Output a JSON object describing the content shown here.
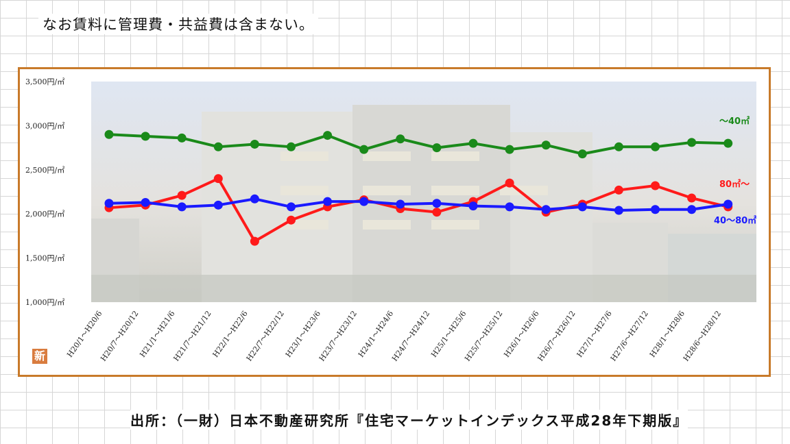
{
  "note": "なお賃料に管理費・共益費は含まない。",
  "source": "出所：（一財）日本不動産研究所『住宅マーケットインデックス平成28年下期版』",
  "badge": "新",
  "colors": {
    "green": "#1a8a1a",
    "red": "#ff1a1a",
    "blue": "#1a1aff",
    "frame": "#c87a2a"
  },
  "chart_data": {
    "type": "line",
    "title": "",
    "xlabel": "",
    "ylabel": "",
    "ylim": [
      1000,
      3500
    ],
    "yticks": [
      {
        "v": 3500,
        "label": "3,500円/㎡"
      },
      {
        "v": 3000,
        "label": "3,000円/㎡"
      },
      {
        "v": 2500,
        "label": "2,500円/㎡"
      },
      {
        "v": 2000,
        "label": "2,000円/㎡"
      },
      {
        "v": 1500,
        "label": "1,500円/㎡"
      },
      {
        "v": 1000,
        "label": "1,000円/㎡"
      }
    ],
    "categories": [
      "H20/1～H20/6",
      "H20/7～H20/12",
      "H21/1～H21/6",
      "H21/7～H21/12",
      "H22/1～H22/6",
      "H22/7～H22/12",
      "H23/1～H23/6",
      "H23/7～H23/12",
      "H24/1～H24/6",
      "H24/7～H24/12",
      "H25/1～H25/6",
      "H25/7～H25/12",
      "H26/1～H26/6",
      "H26/7～H26/12",
      "H27/1～H27/6",
      "H27/6～H27/12",
      "H28/1～H28/6",
      "H28/6～H28/12"
    ],
    "series": [
      {
        "name": "～40㎡",
        "color": "#1a8a1a",
        "values": [
          2900,
          2880,
          2860,
          2760,
          2790,
          2760,
          2890,
          2730,
          2850,
          2750,
          2800,
          2730,
          2780,
          2680,
          2760,
          2760,
          2810,
          2800
        ]
      },
      {
        "name": "80㎡～",
        "color": "#ff1a1a",
        "values": [
          2070,
          2100,
          2210,
          2400,
          1690,
          1930,
          2080,
          2160,
          2060,
          2020,
          2140,
          2350,
          2020,
          2110,
          2270,
          2320,
          2180,
          2080
        ]
      },
      {
        "name": "40～80㎡",
        "color": "#1a1aff",
        "values": [
          2120,
          2130,
          2080,
          2100,
          2170,
          2080,
          2140,
          2140,
          2110,
          2120,
          2090,
          2080,
          2050,
          2080,
          2040,
          2050,
          2050,
          2110
        ]
      }
    ]
  }
}
